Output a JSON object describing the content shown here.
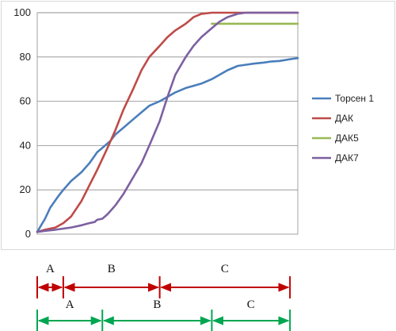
{
  "chart_data": {
    "type": "line",
    "title": "",
    "xlabel": "",
    "ylabel": "",
    "ylim": [
      0,
      100
    ],
    "xlim": [
      0,
      100
    ],
    "yticks": [
      "0",
      "20",
      "40",
      "60",
      "80",
      "100"
    ],
    "grid": true,
    "legend_position": "right",
    "series": [
      {
        "name": "Торсен 1",
        "color": "#4a7ebb",
        "points": [
          [
            0,
            1
          ],
          [
            3,
            7
          ],
          [
            5,
            12
          ],
          [
            8,
            17
          ],
          [
            10,
            20
          ],
          [
            13,
            24
          ],
          [
            15,
            26
          ],
          [
            17,
            28
          ],
          [
            20,
            32
          ],
          [
            23,
            37
          ],
          [
            25,
            39
          ],
          [
            28,
            42
          ],
          [
            30,
            45
          ],
          [
            33,
            48
          ],
          [
            36,
            51
          ],
          [
            40,
            55
          ],
          [
            43,
            58
          ],
          [
            47,
            60
          ],
          [
            50,
            62
          ],
          [
            53,
            64
          ],
          [
            57,
            66
          ],
          [
            60,
            67
          ],
          [
            63,
            68
          ],
          [
            67,
            70
          ],
          [
            70,
            72
          ],
          [
            73,
            74
          ],
          [
            77,
            76
          ],
          [
            80,
            76.5
          ],
          [
            83,
            77
          ],
          [
            87,
            77.5
          ],
          [
            90,
            78
          ],
          [
            93,
            78.2
          ],
          [
            97,
            79
          ],
          [
            100,
            79.5
          ]
        ]
      },
      {
        "name": "ДАК",
        "color": "#be4b48",
        "points": [
          [
            0,
            1
          ],
          [
            3,
            2
          ],
          [
            7,
            3
          ],
          [
            10,
            5
          ],
          [
            13,
            8
          ],
          [
            17,
            15
          ],
          [
            20,
            22
          ],
          [
            23,
            29
          ],
          [
            27,
            39
          ],
          [
            30,
            47
          ],
          [
            33,
            56
          ],
          [
            37,
            66
          ],
          [
            40,
            74
          ],
          [
            43,
            80
          ],
          [
            47,
            85
          ],
          [
            50,
            89
          ],
          [
            53,
            92
          ],
          [
            57,
            95
          ],
          [
            60,
            98
          ],
          [
            63,
            99.5
          ],
          [
            67,
            100
          ],
          [
            100,
            100
          ]
        ]
      },
      {
        "name": "ДАК5",
        "color": "#98b954",
        "points": [
          [
            67,
            95
          ],
          [
            100,
            95
          ]
        ]
      },
      {
        "name": "ДАК7",
        "color": "#7d60a0",
        "points": [
          [
            0,
            1
          ],
          [
            3,
            1.5
          ],
          [
            7,
            2
          ],
          [
            10,
            2.5
          ],
          [
            13,
            3
          ],
          [
            17,
            4
          ],
          [
            20,
            5
          ],
          [
            22,
            5.5
          ],
          [
            23,
            6.5
          ],
          [
            25,
            7
          ],
          [
            27,
            9
          ],
          [
            30,
            13
          ],
          [
            33,
            18
          ],
          [
            37,
            26
          ],
          [
            40,
            32
          ],
          [
            43,
            40
          ],
          [
            47,
            51
          ],
          [
            50,
            62
          ],
          [
            53,
            72
          ],
          [
            57,
            80
          ],
          [
            60,
            85
          ],
          [
            63,
            89
          ],
          [
            67,
            93
          ],
          [
            70,
            96
          ],
          [
            73,
            98
          ],
          [
            77,
            99.5
          ],
          [
            80,
            100
          ],
          [
            100,
            100
          ]
        ]
      }
    ],
    "segments": [
      {
        "row": "red",
        "color": "#c00000",
        "items": [
          {
            "label": "A",
            "from": 0,
            "to": 10
          },
          {
            "label": "B",
            "from": 10,
            "to": 47
          },
          {
            "label": "C",
            "from": 47,
            "to": 97
          }
        ]
      },
      {
        "row": "green",
        "color": "#00a651",
        "items": [
          {
            "label": "A",
            "from": 0,
            "to": 25
          },
          {
            "label": "B",
            "from": 25,
            "to": 67
          },
          {
            "label": "C",
            "from": 67,
            "to": 97
          }
        ]
      }
    ]
  }
}
